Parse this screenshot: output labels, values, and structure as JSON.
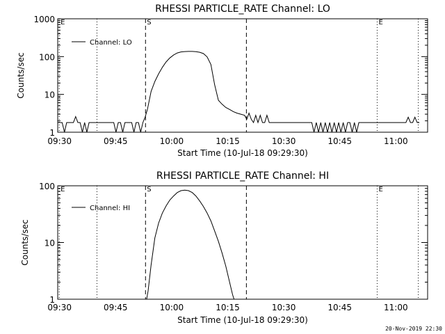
{
  "footer": {
    "stamp": "20-Nov-2019 22:30"
  },
  "chart_data": [
    {
      "type": "line",
      "title": "RHESSI PARTICLE_RATE Channel: LO",
      "xlabel": "Start Time (10-Jul-18 09:29:30)",
      "ylabel": "Counts/sec",
      "yscale": "log",
      "ylim": [
        1,
        1000
      ],
      "xlim_minutes": [
        0,
        99
      ],
      "xticks": [
        {
          "m": 0.5,
          "label": "09:30"
        },
        {
          "m": 15.5,
          "label": "09:45"
        },
        {
          "m": 30.5,
          "label": "10:00"
        },
        {
          "m": 45.5,
          "label": "10:15"
        },
        {
          "m": 60.5,
          "label": "10:30"
        },
        {
          "m": 75.5,
          "label": "10:45"
        },
        {
          "m": 90.5,
          "label": "11:00"
        }
      ],
      "yticks": [
        {
          "v": 1,
          "label": "1"
        },
        {
          "v": 10,
          "label": "10"
        },
        {
          "v": 100,
          "label": "100"
        },
        {
          "v": 1000,
          "label": "1000"
        }
      ],
      "legend": {
        "label": "Channel: LO",
        "position": "top-left"
      },
      "markers": [
        {
          "m": 0.4,
          "label": "E",
          "style": "dotted"
        },
        {
          "m": 10.5,
          "style": "dotted"
        },
        {
          "m": 23.5,
          "label": "S",
          "style": "dashed"
        },
        {
          "m": 50.5,
          "style": "dashed"
        },
        {
          "m": 85.5,
          "label": "E",
          "style": "dotted"
        },
        {
          "m": 96.5,
          "style": "dotted"
        }
      ],
      "series": [
        {
          "x_minutes": [
            0,
            0.6,
            1.2,
            1.8,
            2.4,
            3.0,
            3.6,
            4.2,
            4.8,
            5.4,
            6.0,
            6.6,
            7.2,
            7.8,
            8.4,
            9.0,
            9.6,
            10.2,
            10.8,
            11.4,
            12.0,
            12.6,
            13.2,
            13.8,
            14.4,
            15.0,
            15.6,
            16.2,
            16.8,
            17.4,
            18.0,
            18.6,
            19.2,
            19.8,
            20.4,
            21.0,
            21.6,
            22.2,
            22.8,
            23.4,
            24.0,
            25.0,
            26.0,
            27.0,
            28.0,
            29.0,
            30.0,
            31.0,
            32.0,
            33.0,
            34.0,
            35.0,
            36.0,
            37.0,
            38.0,
            39.0,
            40.0,
            41.0,
            42.0,
            43.0,
            44.0,
            45.0,
            46.0,
            47.0,
            48.0,
            49.0,
            50.0,
            50.6,
            51.2,
            51.8,
            52.4,
            53.0,
            53.6,
            54.2,
            54.8,
            55.4,
            56.0,
            56.6,
            57.2,
            57.8,
            58.4,
            59.0,
            59.6,
            60.2,
            60.8,
            61.4,
            62.0,
            62.6,
            63.2,
            63.8,
            64.4,
            65.0,
            65.6,
            66.2,
            66.8,
            67.4,
            68.0,
            68.6,
            69.2,
            69.8,
            70.4,
            71.0,
            71.6,
            72.2,
            72.8,
            73.4,
            74.0,
            74.6,
            75.2,
            75.8,
            76.4,
            77.0,
            77.6,
            78.2,
            78.8,
            79.4,
            80.0,
            80.6,
            81.2,
            81.8,
            82.4,
            83.0,
            83.6,
            84.2,
            84.8,
            85.4,
            86.0,
            86.6,
            87.2,
            87.8,
            88.4,
            89.0,
            89.6,
            90.2,
            90.8,
            91.4,
            92.0,
            92.6,
            93.2,
            93.8,
            94.4,
            95.0,
            95.6,
            96.2,
            96.8
          ],
          "values": [
            1.8,
            1.8,
            1.8,
            1,
            1.8,
            1.8,
            1.8,
            1.8,
            2.6,
            1.8,
            1.8,
            1,
            1.8,
            1,
            1.8,
            1.8,
            1.8,
            1.8,
            1.8,
            1.8,
            1.8,
            1.8,
            1.8,
            1.8,
            1.8,
            1.8,
            1,
            1.8,
            1.8,
            1,
            1.8,
            1.8,
            1.8,
            1.8,
            1,
            1.8,
            1.8,
            1,
            1.8,
            2.5,
            4,
            12,
            22,
            35,
            52,
            72,
            92,
            110,
            125,
            133,
            136,
            137,
            137,
            135,
            130,
            120,
            98,
            62,
            18,
            7,
            5.5,
            4.5,
            4,
            3.5,
            3.2,
            3,
            2.8,
            2.2,
            3.2,
            2.2,
            1.8,
            2.8,
            1.8,
            2.8,
            1.8,
            1.8,
            2.8,
            1.8,
            1.8,
            1.8,
            1.8,
            1.8,
            1.8,
            1.8,
            1.8,
            1.8,
            1.8,
            1.8,
            1.8,
            1.8,
            1.8,
            1.8,
            1.8,
            1.8,
            1.8,
            1.8,
            1.8,
            1,
            1.8,
            1,
            1.8,
            1,
            1.8,
            1,
            1.8,
            1,
            1.8,
            1,
            1.8,
            1,
            1.8,
            1,
            1.8,
            1.8,
            1,
            1.8,
            1,
            1.8,
            1.8,
            1.8,
            1.8,
            1.8,
            1.8,
            1.8,
            1.8,
            1.8,
            1.8,
            1.8,
            1.8,
            1.8,
            1.8,
            1.8,
            1.8,
            1.8,
            1.8,
            1.8,
            1.8,
            1.8,
            1.8,
            2.5,
            1.8,
            1.8,
            2.5,
            1.8,
            1.8
          ]
        }
      ]
    },
    {
      "type": "line",
      "title": "RHESSI PARTICLE_RATE Channel: HI",
      "xlabel": "Start Time (10-Jul-18 09:29:30)",
      "ylabel": "Counts/sec",
      "yscale": "log",
      "ylim": [
        1,
        100
      ],
      "xlim_minutes": [
        0,
        99
      ],
      "xticks": [
        {
          "m": 0.5,
          "label": "09:30"
        },
        {
          "m": 15.5,
          "label": "09:45"
        },
        {
          "m": 30.5,
          "label": "10:00"
        },
        {
          "m": 45.5,
          "label": "10:15"
        },
        {
          "m": 60.5,
          "label": "10:30"
        },
        {
          "m": 75.5,
          "label": "10:45"
        },
        {
          "m": 90.5,
          "label": "11:00"
        }
      ],
      "yticks": [
        {
          "v": 1,
          "label": "1"
        },
        {
          "v": 10,
          "label": "10"
        },
        {
          "v": 100,
          "label": "100"
        }
      ],
      "legend": {
        "label": "Channel: HI",
        "position": "top-left"
      },
      "markers": [
        {
          "m": 0.4,
          "label": "E",
          "style": "dotted"
        },
        {
          "m": 10.5,
          "style": "dotted"
        },
        {
          "m": 23.5,
          "label": "S",
          "style": "dashed"
        },
        {
          "m": 50.5,
          "style": "dashed"
        },
        {
          "m": 85.5,
          "label": "E",
          "style": "dotted"
        },
        {
          "m": 96.5,
          "style": "dotted"
        }
      ],
      "series": [
        {
          "x_minutes": [
            23.8,
            24.2,
            25.0,
            26.0,
            27.0,
            28.0,
            29.0,
            30.0,
            31.0,
            32.0,
            33.0,
            34.0,
            35.0,
            36.0,
            37.0,
            38.0,
            39.0,
            40.0,
            41.0,
            42.0,
            43.0,
            44.0,
            45.0,
            46.0,
            46.8,
            47.2
          ],
          "values": [
            1.0,
            1.4,
            4,
            12,
            22,
            33,
            44,
            56,
            66,
            76,
            82,
            84,
            82,
            76,
            66,
            54,
            43,
            33,
            24,
            16,
            10.5,
            6.5,
            3.8,
            2.0,
            1.2,
            1.0
          ]
        }
      ]
    }
  ]
}
